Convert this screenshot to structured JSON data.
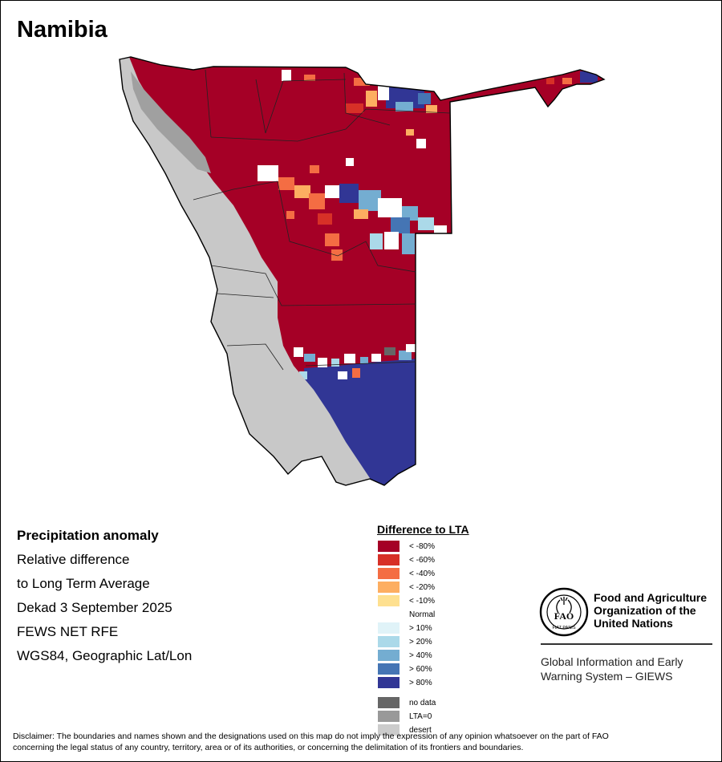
{
  "map": {
    "title": "Namibia",
    "country": "Namibia",
    "regions": [
      "desert-coastal-band",
      "precipitation-deficit-north",
      "precipitation-surplus-south",
      "caprivi-strip"
    ]
  },
  "info": {
    "heading": "Precipitation anomaly",
    "line1": "Relative difference",
    "line2": "to Long Term Average",
    "period": "Dekad 3 September 2025",
    "source": "FEWS NET RFE",
    "projection": "WGS84, Geographic Lat/Lon"
  },
  "legend": {
    "title": "Difference to LTA",
    "items": [
      {
        "label": "< -80%",
        "color": "#a50026"
      },
      {
        "label": "< -60%",
        "color": "#d73027"
      },
      {
        "label": "< -40%",
        "color": "#f46d43"
      },
      {
        "label": "< -20%",
        "color": "#fdae61"
      },
      {
        "label": "< -10%",
        "color": "#fee090"
      },
      {
        "label": "Normal",
        "color": "#ffffff"
      },
      {
        "label": "> 10%",
        "color": "#e0f3f8"
      },
      {
        "label": "> 20%",
        "color": "#abd9e9"
      },
      {
        "label": "> 40%",
        "color": "#74add1"
      },
      {
        "label": "> 60%",
        "color": "#4575b4"
      },
      {
        "label": "> 80%",
        "color": "#313695"
      }
    ],
    "extra": [
      {
        "label": "no data",
        "color": "#666666"
      },
      {
        "label": "LTA=0",
        "color": "#999999"
      },
      {
        "label": "desert",
        "color": "#cccccc"
      }
    ]
  },
  "branding": {
    "org_line1": "Food and Agriculture",
    "org_line2": "Organization of the",
    "org_line3": "United Nations",
    "system_line1": "Global Information and Early",
    "system_line2": "Warning System – GIEWS",
    "logo_text": "FAO",
    "logo_motto": "FIAT PANIS",
    "logo_icon": "fao-logo-icon"
  },
  "disclaimer": {
    "line1": "Disclaimer: The boundaries and names shown and the designations used on this map do not imply the expression of any opinion whatsoever on the part of FAO",
    "line2": "concerning the legal status of any country, territory, area or of its authorities, or concerning the delimitation of its frontiers and boundaries."
  },
  "colors": {
    "desert": "#c8c8c8",
    "lta_zero": "#a0a0a0",
    "deficit_80": "#a50026",
    "surplus_80": "#313695",
    "border": "#000000"
  }
}
